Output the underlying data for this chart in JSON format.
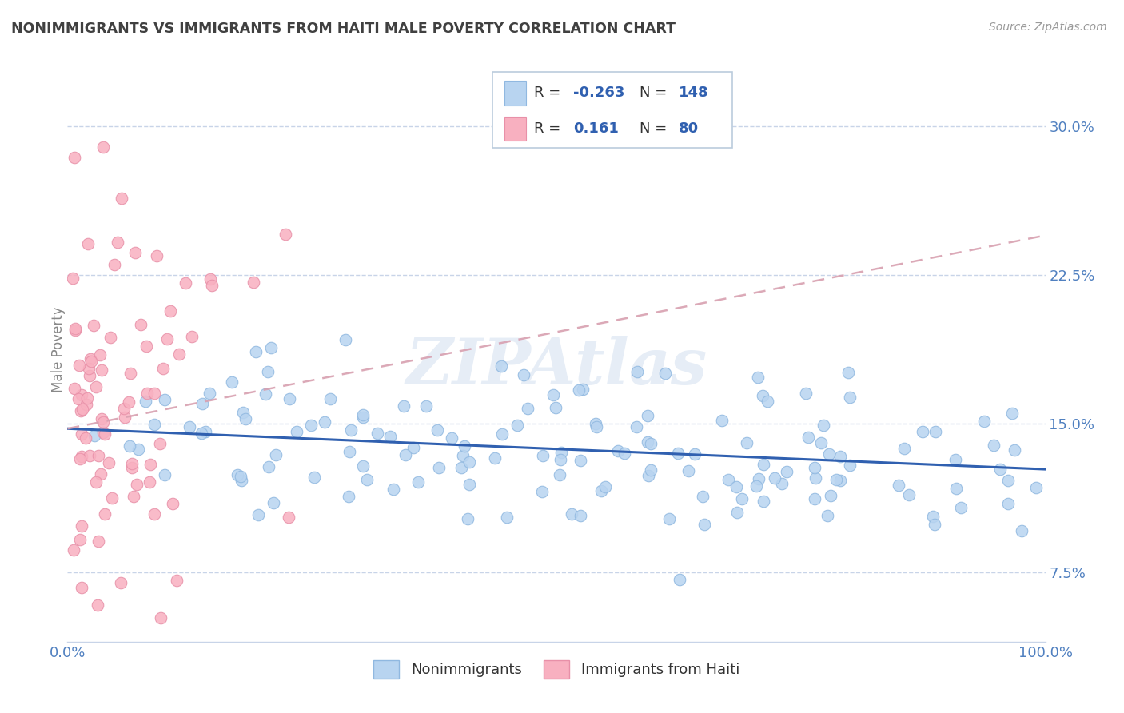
{
  "title": "NONIMMIGRANTS VS IMMIGRANTS FROM HAITI MALE POVERTY CORRELATION CHART",
  "source": "Source: ZipAtlas.com",
  "ylabel": "Male Poverty",
  "xlim": [
    0,
    1.0
  ],
  "ylim": [
    0.04,
    0.335
  ],
  "yticks": [
    0.075,
    0.15,
    0.225,
    0.3
  ],
  "ytick_labels": [
    "7.5%",
    "15.0%",
    "22.5%",
    "30.0%"
  ],
  "xticks": [
    0.0,
    1.0
  ],
  "xtick_labels": [
    "0.0%",
    "100.0%"
  ],
  "blue_color": "#b8d4f0",
  "blue_line_color": "#3060b0",
  "blue_edge_color": "#90b8e0",
  "pink_color": "#f8b0c0",
  "pink_line_color": "#e06880",
  "pink_edge_color": "#e890a8",
  "pink_trend_color": "#d8a0b0",
  "title_color": "#404040",
  "tick_label_color": "#5080c0",
  "background_color": "#ffffff",
  "grid_color": "#c8d4e8",
  "watermark": "ZIPAtlas",
  "blue_trend_y_start": 0.1475,
  "blue_trend_y_end": 0.127,
  "pink_trend_y_start": 0.1475,
  "pink_trend_y_end": 0.245
}
